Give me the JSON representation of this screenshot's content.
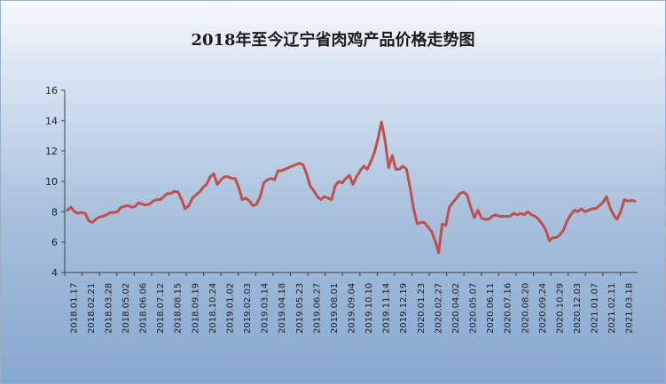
{
  "chart_data": {
    "type": "line",
    "title": "2018年至今辽宁省肉鸡产品价格走势图",
    "xlabel": "",
    "ylabel": "",
    "ylim": [
      4,
      16
    ],
    "yticks": [
      4,
      6,
      8,
      10,
      12,
      14,
      16
    ],
    "grid": false,
    "legend": "none",
    "colors": {
      "line": "#c0504d",
      "axis": "#404040"
    },
    "x_tick_labels": [
      "2018.01.17",
      "2018.02.21",
      "2018.03.28",
      "2018.05.02",
      "2018.06.06",
      "2018.07.12",
      "2018.08.15",
      "2018.09.19",
      "2018.10.24",
      "2019.01.02",
      "2019.02.03",
      "2019.03.14",
      "2019.04.18",
      "2019.05.23",
      "2019.06.27",
      "2019.08.01",
      "2019.09.04",
      "2019.10.10",
      "2019.11.14",
      "2019.12.19",
      "2020.01.23",
      "2020.02.27",
      "2020.04.02",
      "2020.05.07",
      "2020.06.11",
      "2020.07.16",
      "2020.08.20",
      "2020.09.24",
      "2020.10.29",
      "2020.12.03",
      "2021.01.07",
      "2021.02.11",
      "2021.03.18"
    ],
    "values": [
      8.1,
      8.3,
      8.0,
      7.9,
      7.95,
      7.9,
      7.4,
      7.3,
      7.5,
      7.65,
      7.7,
      7.8,
      7.95,
      7.95,
      8.0,
      8.3,
      8.35,
      8.4,
      8.3,
      8.35,
      8.6,
      8.5,
      8.45,
      8.5,
      8.7,
      8.8,
      8.8,
      9.0,
      9.2,
      9.2,
      9.35,
      9.3,
      8.8,
      8.2,
      8.4,
      8.9,
      9.1,
      9.3,
      9.6,
      9.8,
      10.3,
      10.5,
      9.8,
      10.1,
      10.3,
      10.3,
      10.2,
      10.2,
      9.6,
      8.8,
      8.9,
      8.7,
      8.4,
      8.5,
      9.0,
      9.9,
      10.1,
      10.2,
      10.1,
      10.7,
      10.7,
      10.8,
      10.9,
      11.0,
      11.1,
      11.2,
      11.1,
      10.5,
      9.7,
      9.4,
      9.0,
      8.8,
      9.0,
      8.9,
      8.8,
      9.7,
      10.0,
      9.9,
      10.2,
      10.4,
      9.8,
      10.3,
      10.7,
      11.0,
      10.8,
      11.3,
      11.9,
      12.8,
      13.9,
      12.7,
      10.9,
      11.7,
      10.8,
      10.8,
      11.0,
      10.8,
      9.6,
      8.2,
      7.2,
      7.3,
      7.3,
      7.0,
      6.7,
      6.1,
      5.3,
      7.2,
      7.1,
      8.3,
      8.6,
      8.9,
      9.2,
      9.3,
      9.1,
      8.3,
      7.6,
      8.1,
      7.6,
      7.5,
      7.5,
      7.7,
      7.8,
      7.7,
      7.7,
      7.7,
      7.7,
      7.9,
      7.8,
      7.9,
      7.8,
      8.0,
      7.8,
      7.7,
      7.5,
      7.2,
      6.8,
      6.1,
      6.3,
      6.3,
      6.5,
      6.8,
      7.4,
      7.8,
      8.1,
      8.0,
      8.2,
      8.0,
      8.1,
      8.2,
      8.2,
      8.4,
      8.6,
      9.0,
      8.3,
      7.8,
      7.5,
      8.0,
      8.8,
      8.7,
      8.75,
      8.7
    ]
  }
}
